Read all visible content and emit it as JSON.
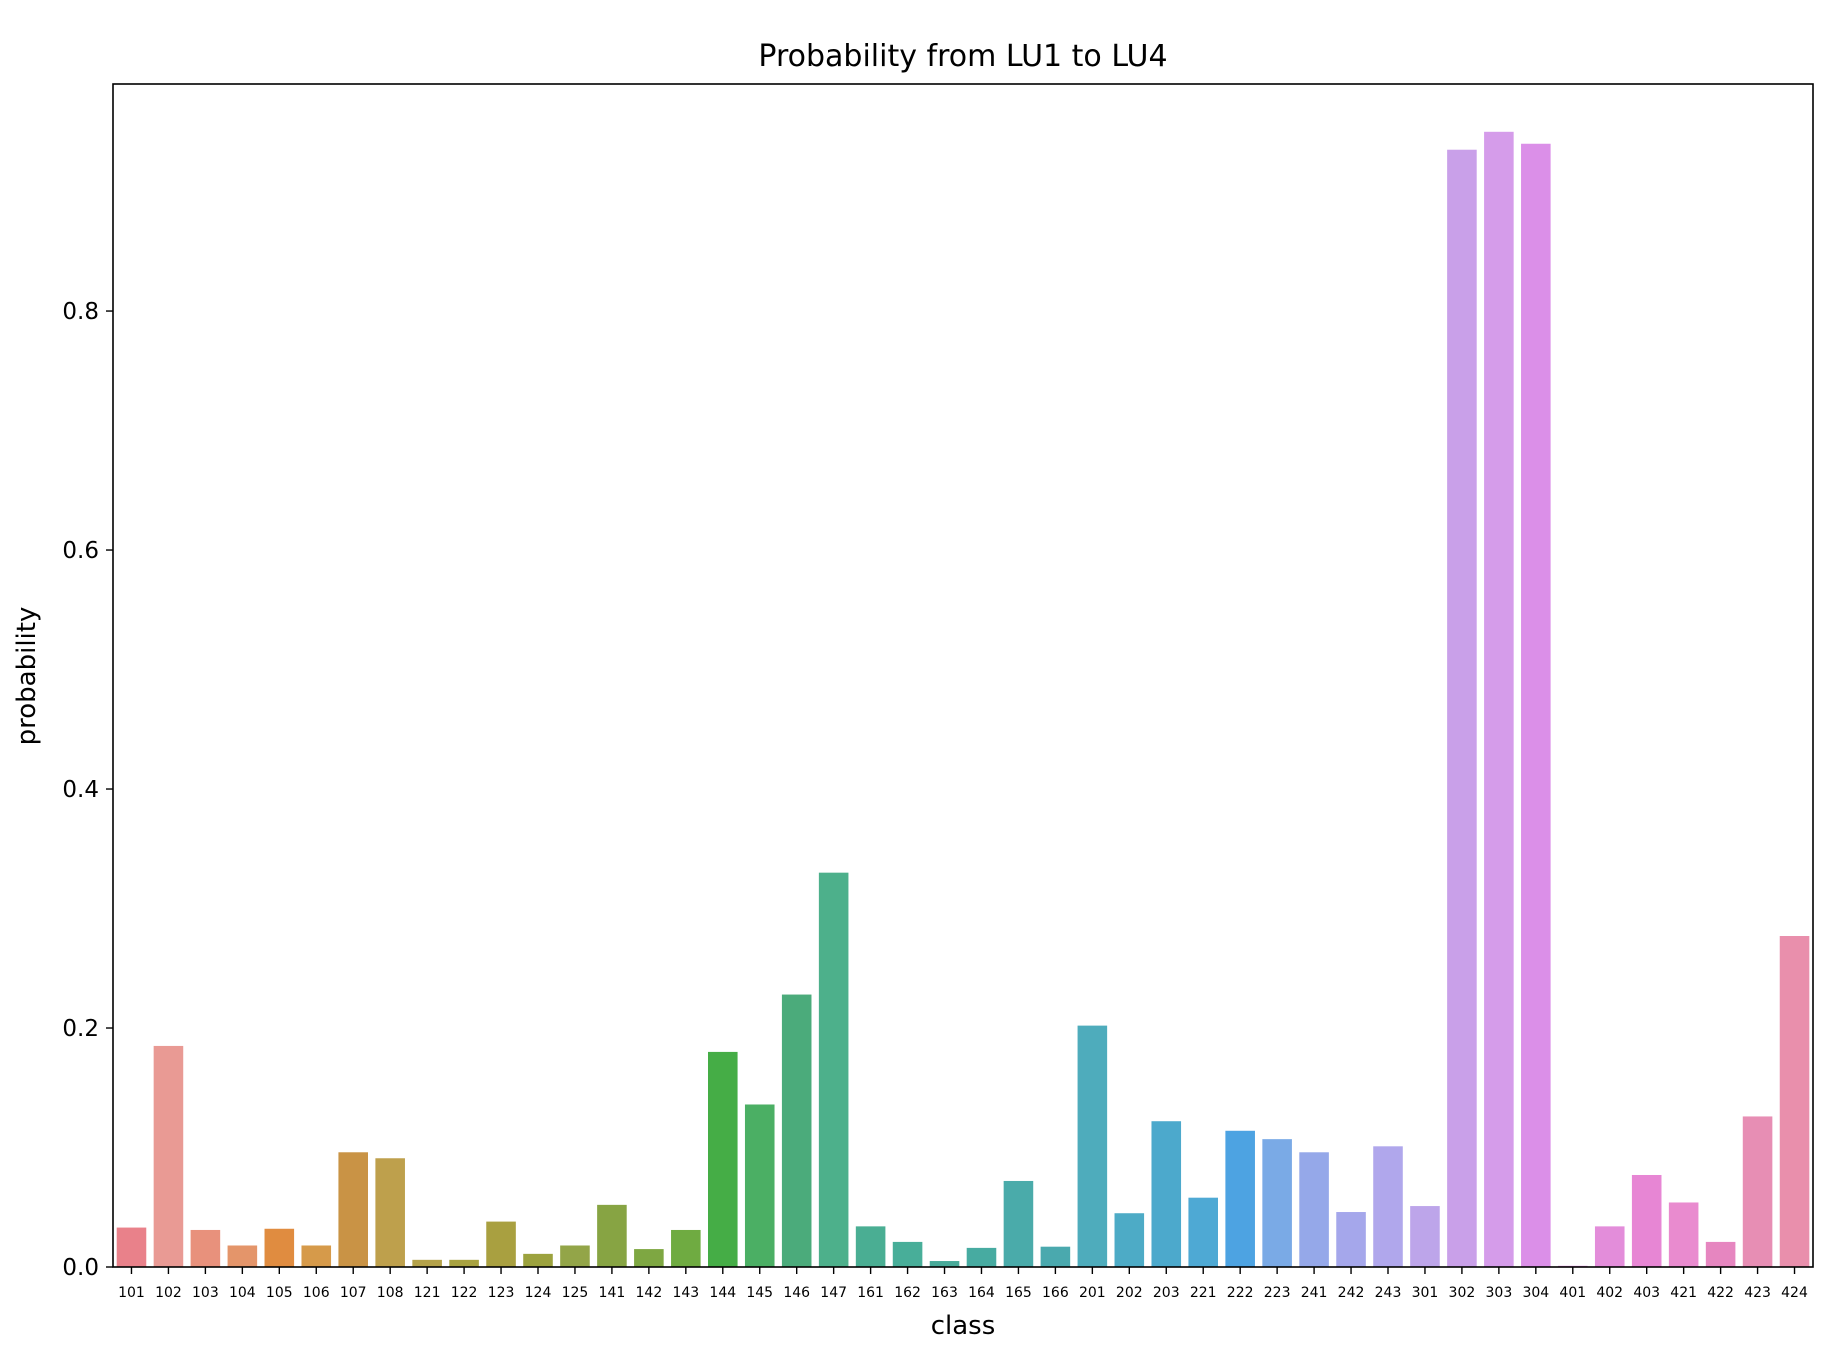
{
  "chart_data": {
    "type": "bar",
    "title": "Probability from LU1 to LU4",
    "xlabel": "class",
    "ylabel": "probability",
    "ylim": [
      0,
      0.99
    ],
    "yticks": [
      "0.0",
      "0.2",
      "0.4",
      "0.6",
      "0.8"
    ],
    "ytick_values": [
      0.0,
      0.2,
      0.4,
      0.6,
      0.8
    ],
    "grid": false,
    "categories": [
      "101",
      "102",
      "103",
      "104",
      "105",
      "106",
      "107",
      "108",
      "121",
      "122",
      "123",
      "124",
      "125",
      "141",
      "142",
      "143",
      "144",
      "145",
      "146",
      "147",
      "161",
      "162",
      "163",
      "164",
      "165",
      "166",
      "201",
      "202",
      "203",
      "221",
      "222",
      "223",
      "241",
      "242",
      "243",
      "301",
      "302",
      "303",
      "304",
      "401",
      "402",
      "403",
      "421",
      "422",
      "423",
      "424"
    ],
    "values": [
      0.033,
      0.185,
      0.031,
      0.018,
      0.032,
      0.018,
      0.096,
      0.091,
      0.006,
      0.006,
      0.038,
      0.011,
      0.018,
      0.052,
      0.015,
      0.031,
      0.18,
      0.136,
      0.228,
      0.33,
      0.034,
      0.021,
      0.005,
      0.016,
      0.072,
      0.017,
      0.202,
      0.045,
      0.122,
      0.058,
      0.114,
      0.107,
      0.096,
      0.046,
      0.101,
      0.051,
      0.935,
      0.95,
      0.94,
      0.001,
      0.034,
      0.077,
      0.054,
      0.021,
      0.126,
      0.277
    ],
    "colors": [
      "#e9818a",
      "#e99a94",
      "#e8917c",
      "#e4956a",
      "#e08c40",
      "#d69a4a",
      "#c99345",
      "#bea04c",
      "#b4a24a",
      "#a8a240",
      "#a9a040",
      "#9ca23e",
      "#93a548",
      "#87a443",
      "#7ea742",
      "#6fab41",
      "#45ad46",
      "#4baf64",
      "#4bab7b",
      "#4db08b",
      "#4aae93",
      "#48ae99",
      "#48aa99",
      "#47aba1",
      "#4aabaa",
      "#4aa9ae",
      "#4eacbc",
      "#4dabc6",
      "#4ca9cc",
      "#4ea9d4",
      "#4da3e2",
      "#7aaae6",
      "#95a8e9",
      "#a5a7eb",
      "#b0a7ec",
      "#bda5ea",
      "#c9a0e9",
      "#d59cea",
      "#db8fe8",
      "#e087e0",
      "#e38dda",
      "#e786d4",
      "#e98bcf",
      "#e686c0",
      "#e78eb4",
      "#e98fac"
    ]
  }
}
